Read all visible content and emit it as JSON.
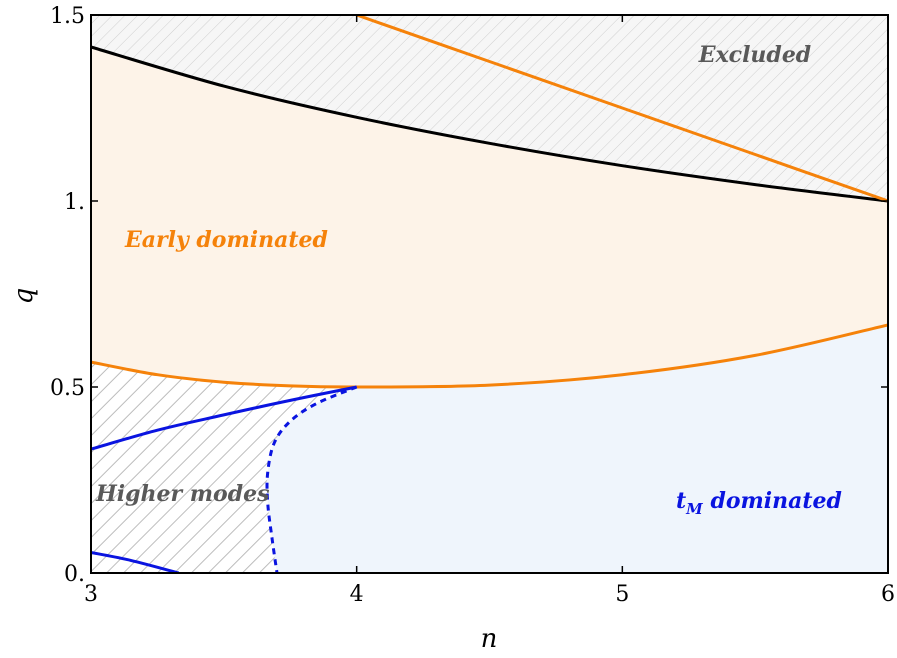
{
  "chart_data": {
    "type": "area",
    "xlabel": "n",
    "ylabel": "q",
    "xlim": [
      3,
      6
    ],
    "ylim": [
      0,
      1.5
    ],
    "x_ticks": [
      {
        "value": 3,
        "label": "3"
      },
      {
        "value": 4,
        "label": "4"
      },
      {
        "value": 5,
        "label": "5"
      },
      {
        "value": 6,
        "label": "6"
      }
    ],
    "y_ticks": [
      {
        "value": 0,
        "label": "0."
      },
      {
        "value": 0.5,
        "label": "0.5"
      },
      {
        "value": 1,
        "label": "1."
      },
      {
        "value": 1.5,
        "label": "1.5"
      }
    ],
    "grid": false,
    "colors": {
      "orange": "#f5820a",
      "black": "#000000",
      "blue": "#0a14e0",
      "early_fill": "#fdf3e8",
      "tm_fill": "#eff5fc",
      "excluded_fill": "#f6f6f6",
      "hatch": "#c0c0c0",
      "gray_text": "#595959"
    },
    "region_labels": [
      {
        "name": "excluded",
        "text": "Excluded",
        "color": "#595959"
      },
      {
        "name": "early",
        "text": "Early dominated",
        "color": "#f5820a"
      },
      {
        "name": "higher",
        "text": "Higher modes",
        "color": "#595959"
      },
      {
        "name": "tm",
        "text_main": "t",
        "text_sub": "M",
        "text_rest": " dominated",
        "color": "#0a14e0"
      }
    ],
    "series": [
      {
        "key": "black_boundary",
        "style": "solid",
        "color": "#000000",
        "points": [
          [
            3,
            1.414
          ],
          [
            3.5,
            1.309
          ],
          [
            4,
            1.225
          ],
          [
            4.5,
            1.155
          ],
          [
            5,
            1.095
          ],
          [
            5.5,
            1.044
          ],
          [
            6,
            1.0
          ]
        ]
      },
      {
        "key": "orange_upper",
        "style": "solid",
        "color": "#f5820a",
        "points": [
          [
            4,
            1.5
          ],
          [
            4.5,
            1.375
          ],
          [
            5,
            1.25
          ],
          [
            5.5,
            1.125
          ],
          [
            6,
            1.0
          ]
        ]
      },
      {
        "key": "orange_lower",
        "style": "solid",
        "color": "#f5820a",
        "points": [
          [
            3,
            0.567
          ],
          [
            3.25,
            0.533
          ],
          [
            3.5,
            0.513
          ],
          [
            3.75,
            0.503
          ],
          [
            4,
            0.5
          ],
          [
            4.5,
            0.505
          ],
          [
            5,
            0.533
          ],
          [
            5.5,
            0.585
          ],
          [
            6,
            0.667
          ]
        ]
      },
      {
        "key": "blue_upper",
        "style": "solid",
        "color": "#0a14e0",
        "points": [
          [
            3,
            0.333
          ],
          [
            3.25,
            0.384
          ],
          [
            3.5,
            0.425
          ],
          [
            3.75,
            0.464
          ],
          [
            4,
            0.5
          ]
        ]
      },
      {
        "key": "blue_lower",
        "style": "solid",
        "color": "#0a14e0",
        "points": [
          [
            3,
            0.055
          ],
          [
            3.15,
            0.034
          ],
          [
            3.33,
            0.0
          ]
        ]
      },
      {
        "key": "blue_dashed",
        "style": "dashed",
        "color": "#0a14e0",
        "points": [
          [
            4,
            0.5
          ],
          [
            3.85,
            0.456
          ],
          [
            3.75,
            0.408
          ],
          [
            3.69,
            0.35
          ],
          [
            3.665,
            0.27
          ],
          [
            3.665,
            0.19
          ],
          [
            3.68,
            0.1
          ],
          [
            3.7,
            0.0
          ]
        ]
      }
    ]
  }
}
